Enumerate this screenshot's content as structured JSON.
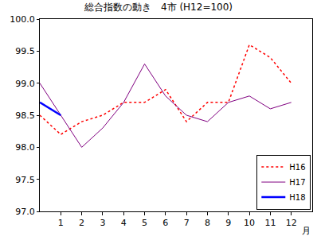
{
  "chart_data": {
    "type": "line",
    "title": "総合指数の動き　4市 (H12=100)",
    "xlabel": "月",
    "x": [
      0,
      1,
      2,
      3,
      4,
      5,
      6,
      7,
      8,
      9,
      10,
      11,
      12
    ],
    "series": [
      {
        "name": "H16",
        "color": "#ff0000",
        "line_style": "dotted",
        "values": [
          98.5,
          98.2,
          98.4,
          98.5,
          98.7,
          98.7,
          98.9,
          98.4,
          98.7,
          98.7,
          99.6,
          99.4,
          99.0
        ]
      },
      {
        "name": "H17",
        "color": "#800080",
        "line_style": "solid",
        "values": [
          99.0,
          98.5,
          98.0,
          98.3,
          98.7,
          99.3,
          98.8,
          98.5,
          98.4,
          98.7,
          98.8,
          98.6,
          98.7
        ]
      },
      {
        "name": "H18",
        "color": "#0000ff",
        "line_style": "solid",
        "values": [
          98.7,
          98.5,
          null,
          null,
          null,
          null,
          null,
          null,
          null,
          null,
          null,
          null,
          null
        ]
      }
    ],
    "xlim": [
      0,
      13
    ],
    "xticks": [
      1,
      2,
      3,
      4,
      5,
      6,
      7,
      8,
      9,
      10,
      11,
      12
    ],
    "ylim": [
      97,
      100
    ],
    "yticks": [
      {
        "value": 97,
        "label": "97.0"
      },
      {
        "value": 97.5,
        "label": "97.5"
      },
      {
        "value": 98,
        "label": "98.0"
      },
      {
        "value": 98.5,
        "label": "98.5"
      },
      {
        "value": 99,
        "label": "99.0"
      },
      {
        "value": 99.5,
        "label": "99.5"
      },
      {
        "value": 100,
        "label": "100.0"
      }
    ],
    "grid": false,
    "legend": "lower right"
  }
}
